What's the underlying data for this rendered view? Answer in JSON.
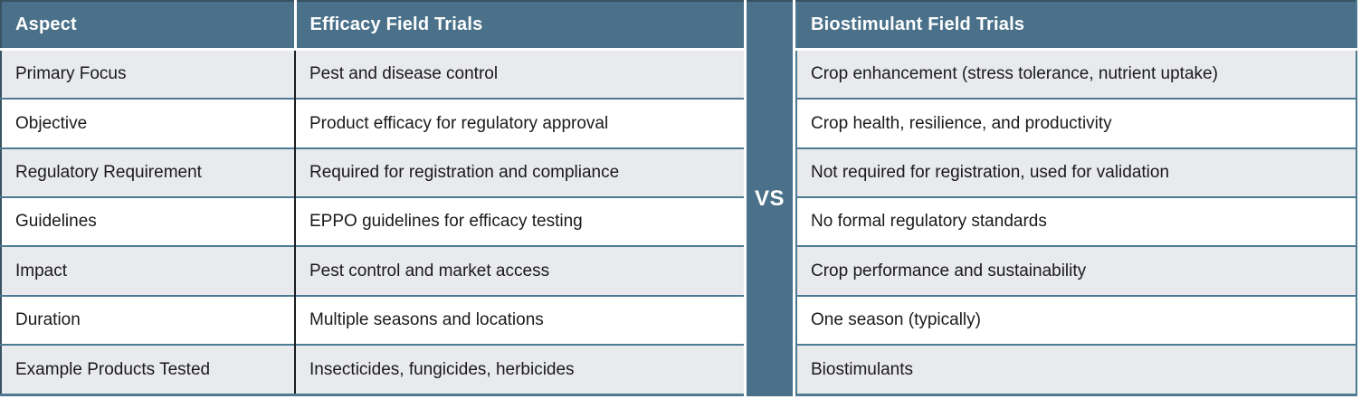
{
  "vs_label": "VS",
  "headers": {
    "aspect": "Aspect",
    "efficacy": "Efficacy Field Trials",
    "biostimulant": "Biostimulant Field Trials"
  },
  "rows": [
    {
      "aspect": "Primary Focus",
      "efficacy": "Pest and disease control",
      "biostimulant": "Crop enhancement (stress tolerance, nutrient uptake)"
    },
    {
      "aspect": "Objective",
      "efficacy": "Product efficacy for regulatory approval",
      "biostimulant": "Crop health, resilience, and productivity"
    },
    {
      "aspect": "Regulatory Requirement",
      "efficacy": "Required for registration and compliance",
      "biostimulant": "Not required for registration, used for validation"
    },
    {
      "aspect": "Guidelines",
      "efficacy": "EPPO guidelines for efficacy testing",
      "biostimulant": "No formal regulatory standards"
    },
    {
      "aspect": "Impact",
      "efficacy": "Pest control and market access",
      "biostimulant": "Crop performance and sustainability"
    },
    {
      "aspect": "Duration",
      "efficacy": "Multiple seasons and locations",
      "biostimulant": "One season (typically)"
    },
    {
      "aspect": "Example Products Tested",
      "efficacy": "Insecticides, fungicides, herbicides",
      "biostimulant": "Biostimulants"
    }
  ],
  "colors": {
    "header_bg": "#4a7189",
    "band_bg": "#4a7189",
    "row_alt_bg": "#e9eaee",
    "row_bg": "#ffffff",
    "divider_blue": "#4d7a92",
    "divider_dark": "#1b1e21",
    "outer_border": "#375261",
    "header_text": "#ffffff",
    "body_text": "#1a1a1a"
  }
}
